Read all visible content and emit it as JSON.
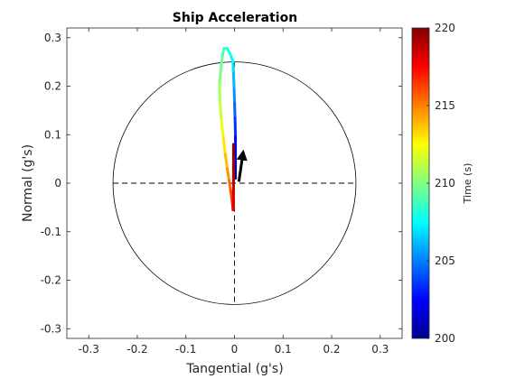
{
  "chart_data": {
    "type": "line",
    "title": "Ship Acceleration",
    "xlabel": "Tangential  (g's)",
    "ylabel": "Normal  (g's)",
    "xlim": [
      -0.345,
      0.345
    ],
    "ylim": [
      -0.32,
      0.32
    ],
    "xticks": [
      -0.3,
      -0.2,
      -0.1,
      0,
      0.1,
      0.2,
      0.3
    ],
    "xtick_labels": [
      "-0.3",
      "-0.2",
      "-0.1",
      "0",
      "0.1",
      "0.2",
      "0.3"
    ],
    "yticks": [
      -0.3,
      -0.2,
      -0.1,
      0,
      0.1,
      0.2,
      0.3
    ],
    "ytick_labels": [
      "-0.3",
      "-0.2",
      "-0.1",
      "0",
      "0.1",
      "0.2",
      "0.3"
    ],
    "grid": false,
    "reference_circle_radius": 0.25,
    "reference_lines": "dashed horizontal and vertical lines through origin",
    "colorbar": {
      "label": "Time  (s)",
      "range": [
        200,
        220
      ],
      "ticks": [
        200,
        205,
        210,
        215,
        220
      ],
      "tick_labels": [
        "200",
        "205",
        "210",
        "215",
        "220"
      ],
      "colormap": "jet"
    },
    "series": [
      {
        "color_by": "time",
        "points": [
          {
            "t": 200.0,
            "x": 0.002,
            "y": 0.01
          },
          {
            "t": 201.0,
            "x": 0.002,
            "y": 0.04
          },
          {
            "t": 202.0,
            "x": 0.002,
            "y": 0.07
          },
          {
            "t": 203.0,
            "x": 0.002,
            "y": 0.1
          },
          {
            "t": 204.0,
            "x": 0.001,
            "y": 0.14
          },
          {
            "t": 205.0,
            "x": 0.0,
            "y": 0.17
          },
          {
            "t": 205.8,
            "x": -0.001,
            "y": 0.2
          },
          {
            "t": 206.5,
            "x": -0.002,
            "y": 0.23
          },
          {
            "t": 207.2,
            "x": -0.003,
            "y": 0.25
          },
          {
            "t": 207.8,
            "x": -0.008,
            "y": 0.265
          },
          {
            "t": 208.3,
            "x": -0.015,
            "y": 0.278
          },
          {
            "t": 208.8,
            "x": -0.022,
            "y": 0.278
          },
          {
            "t": 209.3,
            "x": -0.025,
            "y": 0.26
          },
          {
            "t": 209.8,
            "x": -0.028,
            "y": 0.235
          },
          {
            "t": 210.3,
            "x": -0.031,
            "y": 0.205
          },
          {
            "t": 211.0,
            "x": -0.03,
            "y": 0.17
          },
          {
            "t": 211.8,
            "x": -0.027,
            "y": 0.13
          },
          {
            "t": 212.6,
            "x": -0.023,
            "y": 0.095
          },
          {
            "t": 213.4,
            "x": -0.019,
            "y": 0.06
          },
          {
            "t": 214.2,
            "x": -0.015,
            "y": 0.03
          },
          {
            "t": 215.0,
            "x": -0.011,
            "y": 0.005
          },
          {
            "t": 215.8,
            "x": -0.008,
            "y": -0.015
          },
          {
            "t": 216.5,
            "x": -0.005,
            "y": -0.035
          },
          {
            "t": 217.2,
            "x": -0.003,
            "y": -0.055
          },
          {
            "t": 217.9,
            "x": -0.002,
            "y": -0.045
          },
          {
            "t": 218.5,
            "x": -0.002,
            "y": -0.01
          },
          {
            "t": 219.0,
            "x": -0.002,
            "y": 0.03
          },
          {
            "t": 219.5,
            "x": -0.002,
            "y": 0.06
          },
          {
            "t": 220.0,
            "x": -0.002,
            "y": 0.08
          }
        ]
      }
    ],
    "current_vector": {
      "x": 0.018,
      "y": 0.065,
      "color": "#000000"
    }
  }
}
